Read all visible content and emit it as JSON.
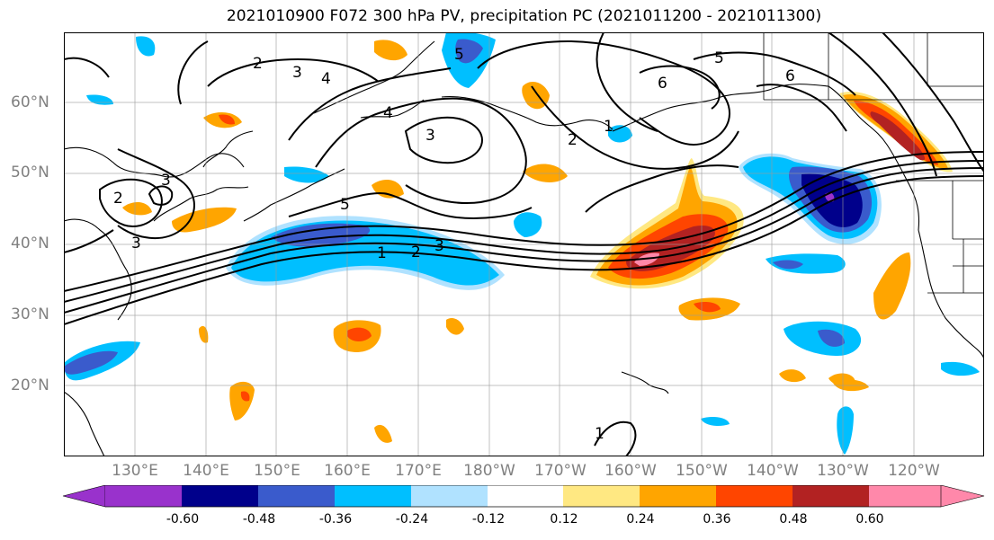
{
  "title": "2021010900 F072 300 hPa PV, precipitation PC (2021011200 - 2021011300)",
  "lat_labels": [
    "60°N",
    "50°N",
    "40°N",
    "30°N",
    "20°N"
  ],
  "lon_labels": [
    "130°E",
    "140°E",
    "150°E",
    "160°E",
    "170°E",
    "180°W",
    "170°W",
    "160°W",
    "150°W",
    "140°W",
    "130°W",
    "120°W"
  ],
  "colorbar": {
    "ticks": [
      "-0.60",
      "-0.48",
      "-0.36",
      "-0.24",
      "-0.12",
      "0.12",
      "0.24",
      "0.36",
      "0.48",
      "0.60"
    ],
    "colors": [
      "#9932cc",
      "#00008b",
      "#3a5bcc",
      "#00bfff",
      "#b0e2ff",
      "#ffffff",
      "#ffe882",
      "#ffa500",
      "#ff4500",
      "#b22222",
      "#ff88aa"
    ]
  },
  "contour_labels": [
    "1",
    "2",
    "3",
    "4",
    "5",
    "6",
    "3",
    "4",
    "5",
    "2",
    "3",
    "5",
    "6",
    "1",
    "2",
    "3",
    "3",
    "1",
    "2"
  ]
}
